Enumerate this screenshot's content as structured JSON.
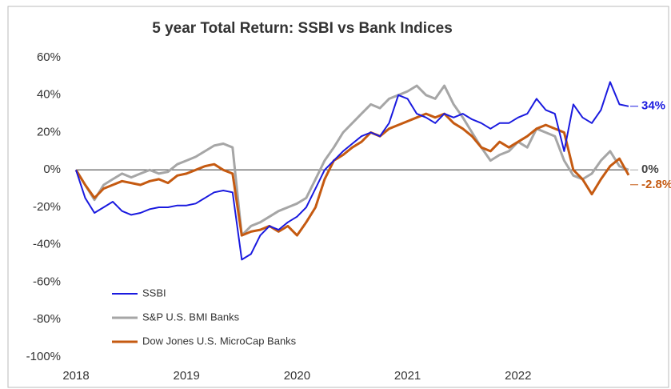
{
  "chart_data": {
    "type": "line",
    "title": "5 year Total Return:  SSBI vs Bank Indices",
    "x": [
      2018.0,
      2018.083,
      2018.167,
      2018.25,
      2018.333,
      2018.417,
      2018.5,
      2018.583,
      2018.667,
      2018.75,
      2018.833,
      2018.917,
      2019.0,
      2019.083,
      2019.167,
      2019.25,
      2019.333,
      2019.417,
      2019.5,
      2019.583,
      2019.667,
      2019.75,
      2019.833,
      2019.917,
      2020.0,
      2020.083,
      2020.167,
      2020.25,
      2020.333,
      2020.417,
      2020.5,
      2020.583,
      2020.667,
      2020.75,
      2020.833,
      2020.917,
      2021.0,
      2021.083,
      2021.167,
      2021.25,
      2021.333,
      2021.417,
      2021.5,
      2021.583,
      2021.667,
      2021.75,
      2021.833,
      2021.917,
      2022.0,
      2022.083,
      2022.167,
      2022.25,
      2022.333,
      2022.417,
      2022.5,
      2022.583,
      2022.667,
      2022.75,
      2022.833,
      2022.917,
      2023.0
    ],
    "series": [
      {
        "name": "SSBI",
        "color": "#1a1adf",
        "end_label": "34%",
        "values": [
          0,
          -15,
          -23,
          -20,
          -17,
          -22,
          -24,
          -23,
          -21,
          -20,
          -20,
          -19,
          -19,
          -18,
          -15,
          -12,
          -11,
          -12,
          -48,
          -45,
          -35,
          -30,
          -32,
          -28,
          -25,
          -20,
          -10,
          0,
          5,
          10,
          14,
          18,
          20,
          18,
          25,
          40,
          38,
          30,
          28,
          25,
          30,
          28,
          30,
          27,
          25,
          22,
          25,
          25,
          28,
          30,
          38,
          32,
          30,
          10,
          35,
          28,
          25,
          32,
          47,
          35,
          34
        ]
      },
      {
        "name": "S&P U.S. BMI Banks",
        "color": "#a6a6a6",
        "end_label": "0%",
        "values": [
          0,
          -8,
          -16,
          -8,
          -5,
          -2,
          -4,
          -2,
          0,
          -2,
          -1,
          3,
          5,
          7,
          10,
          13,
          14,
          12,
          -35,
          -30,
          -28,
          -25,
          -22,
          -20,
          -18,
          -15,
          -5,
          5,
          12,
          20,
          25,
          30,
          35,
          33,
          38,
          40,
          42,
          45,
          40,
          38,
          45,
          35,
          28,
          20,
          12,
          5,
          8,
          10,
          15,
          12,
          22,
          20,
          18,
          5,
          -3,
          -5,
          -2,
          5,
          10,
          2,
          0
        ]
      },
      {
        "name": "Dow Jones U.S. MicroCap Banks",
        "color": "#c55a11",
        "end_label": "-2.8%",
        "values": [
          0,
          -8,
          -15,
          -10,
          -8,
          -6,
          -7,
          -8,
          -6,
          -5,
          -7,
          -3,
          -2,
          0,
          2,
          3,
          0,
          -2,
          -35,
          -33,
          -32,
          -30,
          -33,
          -30,
          -35,
          -28,
          -20,
          -5,
          5,
          8,
          12,
          15,
          20,
          18,
          22,
          24,
          26,
          28,
          30,
          28,
          30,
          25,
          22,
          18,
          12,
          10,
          15,
          12,
          15,
          18,
          22,
          24,
          22,
          20,
          0,
          -5,
          -13,
          -5,
          2,
          6,
          -2.8
        ]
      }
    ],
    "xlim": [
      2018,
      2023
    ],
    "xticks": [
      2018,
      2019,
      2020,
      2021,
      2022
    ],
    "ylim": [
      -100,
      60
    ],
    "yticks": [
      {
        "value": 60,
        "label": "60%"
      },
      {
        "value": 40,
        "label": "40%"
      },
      {
        "value": 20,
        "label": "20%"
      },
      {
        "value": 0,
        "label": "0%"
      },
      {
        "value": -20,
        "label": "-20%"
      },
      {
        "value": -40,
        "label": "-40%"
      },
      {
        "value": -60,
        "label": "-60%"
      },
      {
        "value": -80,
        "label": "-80%"
      },
      {
        "value": -100,
        "label": "-100%"
      }
    ],
    "grid": false
  }
}
